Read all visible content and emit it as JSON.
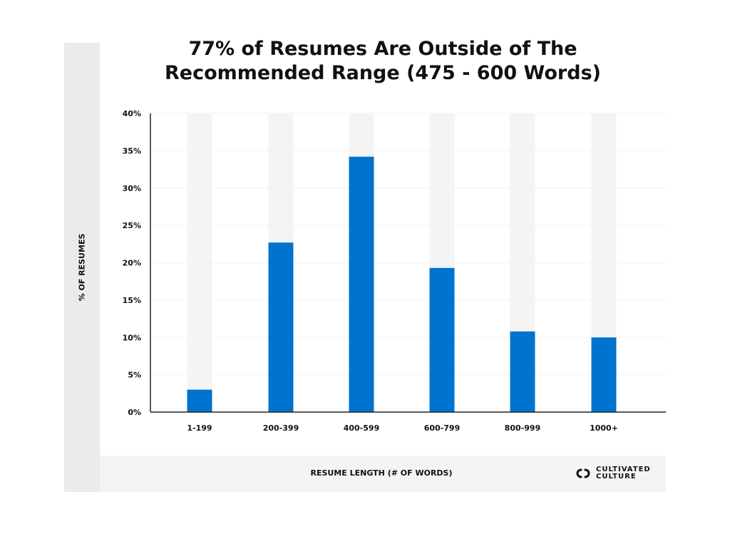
{
  "chart_data": {
    "type": "bar",
    "title_line1": "77% of Resumes Are Outside of The",
    "title_line2": "Recommended Range (475 - 600 Words)",
    "xlabel": "RESUME LENGTH (# OF WORDS)",
    "ylabel": "% OF RESUMES",
    "categories": [
      "1-199",
      "200-399",
      "400-599",
      "600-799",
      "800-999",
      "1000+"
    ],
    "values": [
      3.0,
      22.7,
      34.2,
      19.3,
      10.8,
      10.0
    ],
    "ylim": [
      0,
      40
    ],
    "yticks": [
      "0%",
      "5%",
      "10%",
      "15%",
      "20%",
      "25%",
      "30%",
      "35%",
      "40%"
    ],
    "grid": true,
    "bar_color": "#0073cf",
    "track_color": "#f4f4f4"
  },
  "brand": {
    "line1": "CULTIVATED",
    "line2": "CULTURE"
  }
}
